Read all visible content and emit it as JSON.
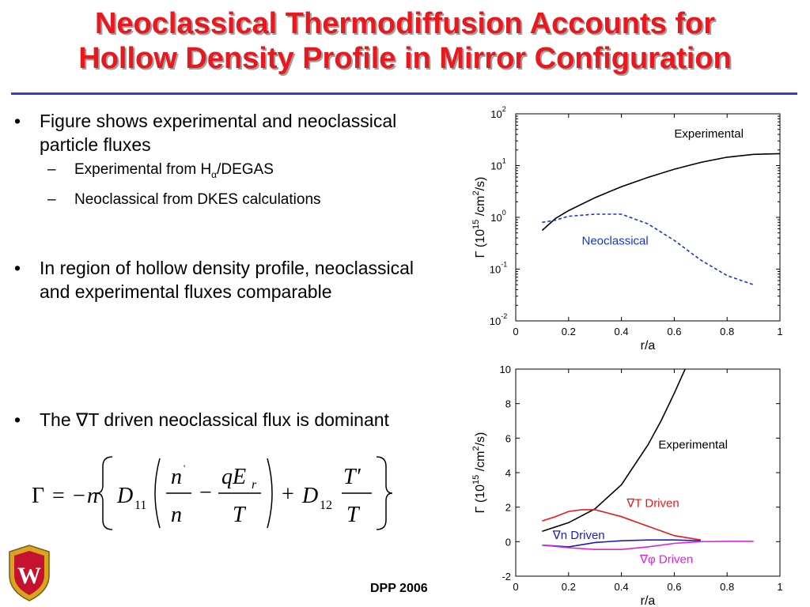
{
  "title": {
    "line1": "Neoclassical Thermodiffusion Accounts for",
    "line2": "Hollow Density Profile in Mirror Configuration"
  },
  "bullets": {
    "bullet1": "Figure shows experimental and neoclassical particle fluxes",
    "sub1_prefix": "Experimental from H",
    "sub1_subscript": "α",
    "sub1_suffix": "/DEGAS",
    "sub2": "Neoclassical from DKES calculations",
    "bullet2": "In region of hollow density profile, neoclassical and experimental fluxes comparable",
    "bullet3": "The ∇T driven neoclassical flux is dominant"
  },
  "footer": "DPP 2006",
  "colors": {
    "title": "#e8181f",
    "title_rule": "#3b3bc4",
    "logo_crest": "#c4122f",
    "logo_gold": "#d9a520"
  },
  "formula_alt": "Γ = −n{ D11 ( n'/n − qEr/T ) + D12 T'/T }",
  "chart_data": [
    {
      "type": "line",
      "title": "",
      "xlabel": "r/a",
      "ylabel": "Γ (10^15 /cm^2/s)",
      "xlim": [
        0,
        1
      ],
      "ylim": [
        0.01,
        100
      ],
      "yscale": "log",
      "xticks": [
        "0",
        "0.2",
        "0.4",
        "0.6",
        "0.8",
        "1"
      ],
      "yticks": [
        {
          "base": "10",
          "exp": "-2"
        },
        {
          "base": "10",
          "exp": "-1"
        },
        {
          "base": "10",
          "exp": "0"
        },
        {
          "base": "10",
          "exp": "1"
        },
        {
          "base": "10",
          "exp": "2"
        }
      ],
      "series": [
        {
          "name": "Experimental",
          "color": "#000000",
          "dash": "solid",
          "x": [
            0.1,
            0.15,
            0.2,
            0.3,
            0.4,
            0.5,
            0.6,
            0.7,
            0.8,
            0.9,
            1.0
          ],
          "y": [
            0.56,
            0.95,
            1.35,
            2.4,
            3.9,
            5.9,
            8.5,
            11.5,
            14.5,
            16.5,
            17
          ]
        },
        {
          "name": "Neoclassical",
          "color": "#1a33cc",
          "dash": "dashed",
          "x": [
            0.1,
            0.15,
            0.2,
            0.3,
            0.4,
            0.5,
            0.6,
            0.7,
            0.8,
            0.9
          ],
          "y": [
            0.8,
            0.88,
            1.05,
            1.15,
            1.15,
            0.75,
            0.36,
            0.15,
            0.075,
            0.05
          ]
        }
      ]
    },
    {
      "type": "line",
      "title": "",
      "xlabel": "r/a",
      "ylabel": "Γ (10^15 /cm^2/s)",
      "xlim": [
        0,
        1
      ],
      "ylim": [
        -2,
        10
      ],
      "xticks": [
        "0",
        "0.2",
        "0.4",
        "0.6",
        "0.8",
        "1"
      ],
      "yticks": [
        "-2",
        "0",
        "2",
        "4",
        "6",
        "8",
        "10"
      ],
      "series": [
        {
          "name": "Experimental",
          "color": "#000000",
          "x": [
            0.1,
            0.2,
            0.3,
            0.4,
            0.5,
            0.55,
            0.6,
            0.65
          ],
          "y": [
            0.6,
            1.1,
            1.9,
            3.3,
            5.6,
            7.0,
            8.6,
            10.3
          ]
        },
        {
          "name": "∇T Driven",
          "color": "#e31a1a",
          "x": [
            0.1,
            0.15,
            0.2,
            0.25,
            0.3,
            0.4,
            0.5,
            0.6,
            0.7
          ],
          "y": [
            1.2,
            1.45,
            1.75,
            1.85,
            1.85,
            1.45,
            0.9,
            0.35,
            0.1
          ]
        },
        {
          "name": "∇n Driven",
          "color": "#1a1acc",
          "x": [
            0.1,
            0.15,
            0.2,
            0.3,
            0.4,
            0.5,
            0.6,
            0.7
          ],
          "y": [
            -0.2,
            -0.25,
            -0.3,
            -0.05,
            0.05,
            0.1,
            0.1,
            0.05
          ]
        },
        {
          "name": "∇φ Driven",
          "color": "#e020e0",
          "x": [
            0.1,
            0.2,
            0.3,
            0.4,
            0.5,
            0.6,
            0.7,
            0.8,
            0.9
          ],
          "y": [
            -0.2,
            -0.35,
            -0.45,
            -0.45,
            -0.3,
            -0.1,
            0.0,
            0.02,
            0.02
          ]
        }
      ]
    }
  ]
}
